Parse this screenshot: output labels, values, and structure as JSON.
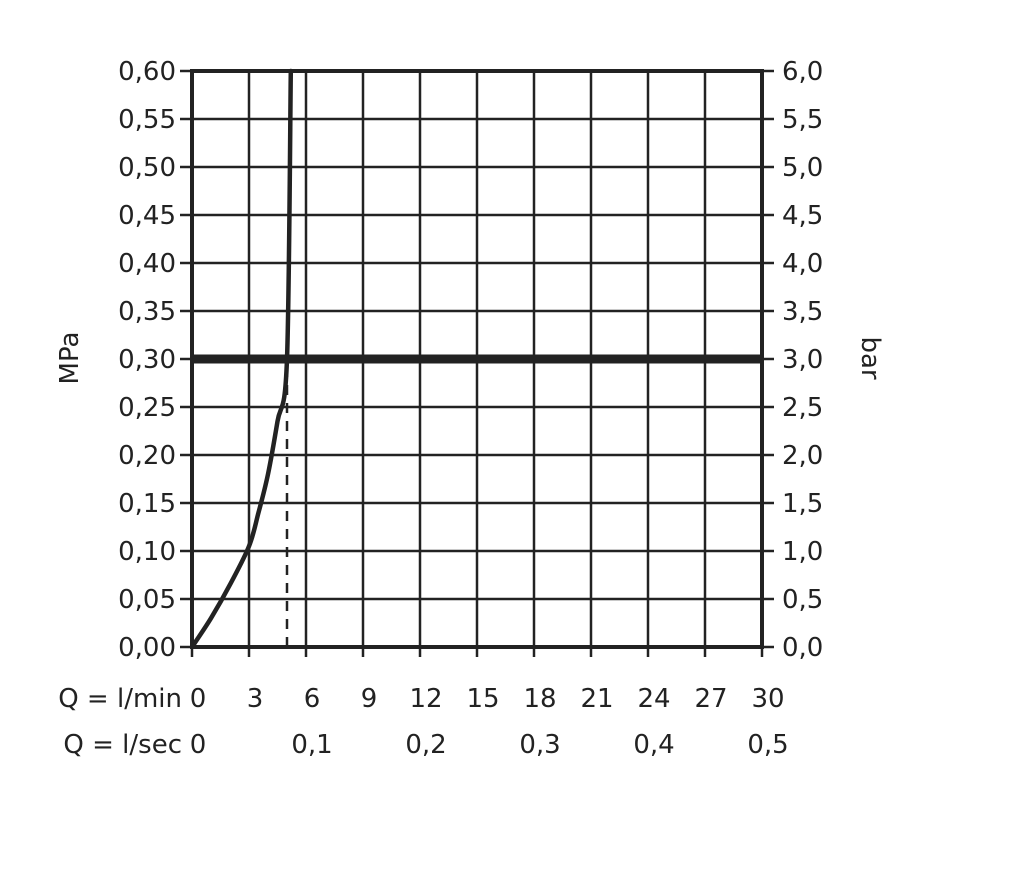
{
  "chart_data": {
    "type": "line",
    "title": "",
    "left_axis": {
      "label": "MPa",
      "range": [
        0,
        0.6
      ],
      "step": 0.05,
      "tick_labels": [
        "0,00",
        "0,05",
        "0,10",
        "0,15",
        "0,20",
        "0,25",
        "0,30",
        "0,35",
        "0,40",
        "0,45",
        "0,50",
        "0,55",
        "0,60"
      ]
    },
    "right_axis": {
      "label": "bar",
      "range": [
        0,
        6.0
      ],
      "tick_labels": [
        "0,0",
        "0,5",
        "1,0",
        "1,5",
        "2,0",
        "2,5",
        "3,0",
        "3,5",
        "4,0",
        "4,5",
        "5,0",
        "5,5",
        "6,0"
      ]
    },
    "x_axis_lmin": {
      "label": "Q = l/min",
      "range": [
        0,
        30
      ],
      "step": 3,
      "tick_labels": [
        "0",
        "3",
        "6",
        "9",
        "12",
        "15",
        "18",
        "21",
        "24",
        "27",
        "30"
      ]
    },
    "x_axis_lsec": {
      "label": "Q = l/sec",
      "tick_values": [
        0,
        6,
        12,
        18,
        24,
        30
      ],
      "tick_labels": [
        "0",
        "0,1",
        "0,2",
        "0,3",
        "0,4",
        "0,5"
      ]
    },
    "grid": true,
    "series": [
      {
        "x": [
          0,
          1,
          2,
          3,
          3.5,
          4,
          4.5,
          5,
          5.2
        ],
        "y": [
          0,
          0.03,
          0.065,
          0.105,
          0.14,
          0.18,
          0.235,
          0.3,
          0.6
        ],
        "color": "#222222"
      }
    ],
    "reference_lines": {
      "horizontal_bold_y": 0.3,
      "vertical_dashed_x": 5,
      "dashed_from_y": 0,
      "dashed_to_y": 0.3
    }
  }
}
